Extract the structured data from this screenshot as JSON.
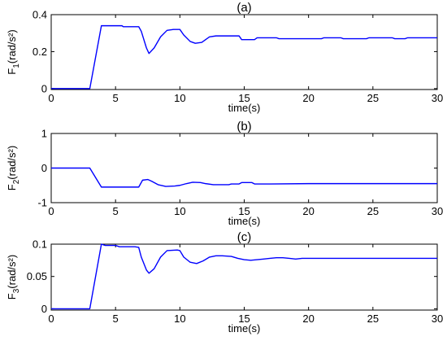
{
  "chart_data": [
    {
      "type": "line",
      "title": "(a)",
      "xlabel": "time(s)",
      "ylabel_main": "F",
      "ylabel_sub": "1",
      "ylabel_unit": "(rad/s²)",
      "xlim": [
        0,
        30
      ],
      "ylim": [
        -0.005,
        0.4
      ],
      "xticks": [
        0,
        5,
        10,
        15,
        20,
        25,
        30
      ],
      "yticks": [
        {
          "value": 0,
          "label": "0"
        },
        {
          "value": 0.2,
          "label": "0.2"
        },
        {
          "value": 0.4,
          "label": "0.4"
        }
      ],
      "color": "#0000ff",
      "series": [
        {
          "x": [
            0,
            3.0,
            3.9,
            5.5,
            5.6,
            6.8,
            7.0,
            7.4,
            7.6,
            8.0,
            8.5,
            9.0,
            9.5,
            10.0,
            10.3,
            10.8,
            11.2,
            11.7,
            12.3,
            12.8,
            13.2,
            14.6,
            14.8,
            15.8,
            16.0,
            17.5,
            17.7,
            19.5,
            20.0,
            21.0,
            21.2,
            22.5,
            22.7,
            24.5,
            24.7,
            26.5,
            26.7,
            27.5,
            27.7,
            30.0
          ],
          "y": [
            0,
            0,
            0.34,
            0.34,
            0.335,
            0.335,
            0.31,
            0.22,
            0.19,
            0.22,
            0.28,
            0.315,
            0.32,
            0.32,
            0.29,
            0.255,
            0.245,
            0.25,
            0.28,
            0.285,
            0.285,
            0.285,
            0.265,
            0.265,
            0.275,
            0.275,
            0.27,
            0.27,
            0.27,
            0.27,
            0.275,
            0.275,
            0.27,
            0.27,
            0.275,
            0.275,
            0.27,
            0.27,
            0.275,
            0.275
          ]
        }
      ]
    },
    {
      "type": "line",
      "title": "(b)",
      "xlabel": "time(s)",
      "ylabel_main": "F",
      "ylabel_sub": "2",
      "ylabel_unit": "(rad/s²)",
      "xlim": [
        0,
        30
      ],
      "ylim": [
        -1,
        1
      ],
      "xticks": [
        0,
        5,
        10,
        15,
        20,
        25,
        30
      ],
      "yticks": [
        {
          "value": -1,
          "label": "-1"
        },
        {
          "value": 0,
          "label": "0"
        },
        {
          "value": 1,
          "label": "1"
        }
      ],
      "color": "#0000ff",
      "series": [
        {
          "x": [
            0,
            3.0,
            3.9,
            6.8,
            7.1,
            7.5,
            7.8,
            8.3,
            8.9,
            9.6,
            10.0,
            10.5,
            11.0,
            11.6,
            12.0,
            12.6,
            13.0,
            13.8,
            14.0,
            14.6,
            14.8,
            15.6,
            15.8,
            17.0,
            20.0,
            30.0
          ],
          "y": [
            0,
            0,
            -0.55,
            -0.55,
            -0.35,
            -0.33,
            -0.38,
            -0.48,
            -0.53,
            -0.52,
            -0.5,
            -0.45,
            -0.41,
            -0.42,
            -0.45,
            -0.48,
            -0.48,
            -0.48,
            -0.46,
            -0.46,
            -0.42,
            -0.42,
            -0.46,
            -0.46,
            -0.45,
            -0.45
          ]
        }
      ]
    },
    {
      "type": "line",
      "title": "(c)",
      "xlabel": "time(s)",
      "ylabel_main": "F",
      "ylabel_sub": "3",
      "ylabel_unit": "(rad/s²)",
      "xlim": [
        0,
        30
      ],
      "ylim": [
        -0.002,
        0.1
      ],
      "xticks": [
        0,
        5,
        10,
        15,
        20,
        25,
        30
      ],
      "yticks": [
        {
          "value": 0,
          "label": "0"
        },
        {
          "value": 0.05,
          "label": "0.05"
        },
        {
          "value": 0.1,
          "label": "0.1"
        }
      ],
      "color": "#0000ff",
      "series": [
        {
          "x": [
            0,
            3.0,
            3.9,
            4.2,
            5.0,
            5.3,
            6.5,
            6.8,
            7.0,
            7.4,
            7.6,
            8.0,
            8.5,
            9.0,
            9.8,
            10.0,
            10.3,
            10.8,
            11.3,
            11.8,
            12.3,
            12.8,
            13.3,
            14.0,
            14.5,
            15.0,
            15.5,
            16.0,
            16.5,
            17.0,
            17.5,
            18.0,
            18.5,
            19.0,
            19.5,
            20.0,
            30.0
          ],
          "y": [
            0,
            0,
            0.1,
            0.098,
            0.098,
            0.096,
            0.096,
            0.095,
            0.08,
            0.06,
            0.055,
            0.062,
            0.08,
            0.09,
            0.091,
            0.09,
            0.08,
            0.072,
            0.07,
            0.074,
            0.08,
            0.082,
            0.082,
            0.081,
            0.078,
            0.076,
            0.075,
            0.076,
            0.077,
            0.078,
            0.079,
            0.079,
            0.078,
            0.077,
            0.078,
            0.078,
            0.078
          ]
        }
      ]
    }
  ]
}
